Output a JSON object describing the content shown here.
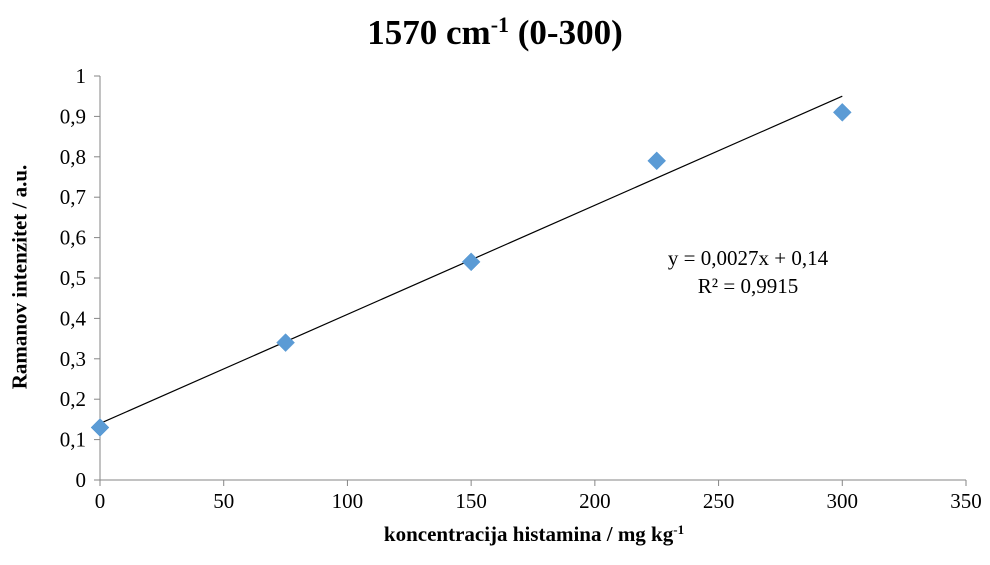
{
  "chart_data": {
    "type": "scatter",
    "title_main": "1570 cm",
    "title_sup": "-1",
    "title_suffix": " (0-300)",
    "xlabel_main": "koncentracija histamina / mg kg",
    "xlabel_sup": "-1",
    "ylabel": "Ramanov intenzitet / a.u.",
    "xlim": [
      0,
      350
    ],
    "ylim": [
      0,
      1
    ],
    "x_ticks": [
      "0",
      "50",
      "100",
      "150",
      "200",
      "250",
      "300",
      "350"
    ],
    "x_tick_values": [
      0,
      50,
      100,
      150,
      200,
      250,
      300,
      350
    ],
    "y_ticks": [
      "0",
      "0,1",
      "0,2",
      "0,3",
      "0,4",
      "0,5",
      "0,6",
      "0,7",
      "0,8",
      "0,9",
      "1"
    ],
    "y_tick_values": [
      0,
      0.1,
      0.2,
      0.3,
      0.4,
      0.5,
      0.6,
      0.7,
      0.8,
      0.9,
      1
    ],
    "series": [
      {
        "x": [
          0,
          75,
          150,
          225,
          300
        ],
        "y": [
          0.13,
          0.34,
          0.54,
          0.79,
          0.91
        ],
        "marker": "diamond",
        "color": "#5b9bd5"
      }
    ],
    "trendline": {
      "slope": 0.0027,
      "intercept": 0.14,
      "x_range": [
        0,
        300
      ],
      "color": "#000000"
    },
    "equation_text": "y = 0,0027x + 0,14",
    "r2_text": "R² = 0,9915",
    "grid": false,
    "legend": "none"
  }
}
